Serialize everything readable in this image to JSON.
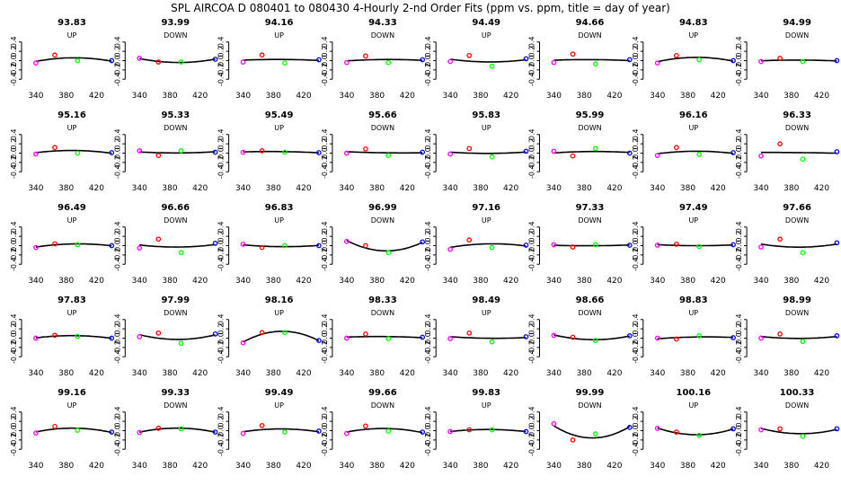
{
  "title": "SPL   AIRCOA D   080401 to 080430   4-Hourly 2-nd Order Fits (ppm vs. ppm, title = day of year)",
  "colors": {
    "p1": "#ff00ff",
    "p2": "#ff0000",
    "p3": "#00ff00",
    "p4": "#0000ff",
    "fit": "#000000"
  },
  "chart_data": {
    "type": "scatter",
    "layout": "5 rows x 8 columns small multiples",
    "title": "SPL   AIRCOA D   080401 to 080430   4-Hourly 2-nd Order Fits (ppm vs. ppm, title = day of year)",
    "xlim": [
      330,
      445
    ],
    "ylim": [
      -0.55,
      0.55
    ],
    "xticks": [
      340,
      380,
      420
    ],
    "xtick_labels": [
      "340",
      "380",
      "420"
    ],
    "yticks": [
      -0.4,
      -0.2,
      0.0,
      0.2,
      0.4
    ],
    "ytick_labels": [
      "-0.4",
      "-0.2",
      "0.0",
      "0.2",
      "0.4"
    ],
    "point_x": [
      340,
      365,
      395,
      440
    ],
    "panels": [
      {
        "title": "93.83",
        "dir": "UP",
        "y": [
          -0.05,
          0.12,
          0.0,
          0.0
        ]
      },
      {
        "title": "93.99",
        "dir": "DOWN",
        "y": [
          0.05,
          -0.03,
          -0.03,
          0.03
        ]
      },
      {
        "title": "94.16",
        "dir": "UP",
        "y": [
          -0.03,
          0.12,
          -0.05,
          0.02
        ]
      },
      {
        "title": "94.33",
        "dir": "DOWN",
        "y": [
          -0.04,
          0.1,
          -0.04,
          0.02
        ]
      },
      {
        "title": "94.49",
        "dir": "UP",
        "y": [
          -0.02,
          0.11,
          -0.12,
          0.04
        ]
      },
      {
        "title": "94.66",
        "dir": "DOWN",
        "y": [
          -0.04,
          0.14,
          -0.07,
          0.02
        ]
      },
      {
        "title": "94.83",
        "dir": "UP",
        "y": [
          -0.05,
          0.11,
          0.02,
          0.0
        ]
      },
      {
        "title": "94.99",
        "dir": "DOWN",
        "y": [
          -0.02,
          0.05,
          -0.02,
          0.0
        ]
      },
      {
        "title": "95.16",
        "dir": "UP",
        "y": [
          -0.02,
          0.12,
          0.0,
          0.01
        ]
      },
      {
        "title": "95.33",
        "dir": "DOWN",
        "y": [
          0.05,
          -0.05,
          0.05,
          0.02
        ]
      },
      {
        "title": "95.49",
        "dir": "UP",
        "y": [
          0.02,
          0.05,
          0.02,
          0.01
        ]
      },
      {
        "title": "95.66",
        "dir": "DOWN",
        "y": [
          0.0,
          0.09,
          -0.05,
          0.02
        ]
      },
      {
        "title": "95.83",
        "dir": "UP",
        "y": [
          -0.02,
          0.1,
          -0.08,
          0.04
        ]
      },
      {
        "title": "95.99",
        "dir": "DOWN",
        "y": [
          0.04,
          -0.06,
          0.1,
          0.0
        ]
      },
      {
        "title": "96.16",
        "dir": "UP",
        "y": [
          -0.05,
          0.12,
          -0.03,
          0.01
        ]
      },
      {
        "title": "96.33",
        "dir": "DOWN",
        "y": [
          -0.06,
          0.2,
          -0.13,
          0.03
        ]
      },
      {
        "title": "96.49",
        "dir": "UP",
        "y": [
          -0.04,
          0.04,
          0.02,
          0.0
        ]
      },
      {
        "title": "96.66",
        "dir": "DOWN",
        "y": [
          -0.05,
          0.14,
          -0.15,
          0.05
        ]
      },
      {
        "title": "96.83",
        "dir": "UP",
        "y": [
          0.03,
          -0.04,
          0.0,
          0.0
        ]
      },
      {
        "title": "96.99",
        "dir": "DOWN",
        "y": [
          0.09,
          0.0,
          -0.15,
          0.08
        ]
      },
      {
        "title": "97.16",
        "dir": "UP",
        "y": [
          -0.08,
          0.12,
          -0.04,
          0.01
        ]
      },
      {
        "title": "97.33",
        "dir": "DOWN",
        "y": [
          0.02,
          -0.03,
          0.02,
          0.01
        ]
      },
      {
        "title": "97.49",
        "dir": "UP",
        "y": [
          0.01,
          0.03,
          -0.02,
          0.02
        ]
      },
      {
        "title": "97.66",
        "dir": "DOWN",
        "y": [
          -0.03,
          0.14,
          -0.15,
          0.06
        ]
      },
      {
        "title": "97.83",
        "dir": "UP",
        "y": [
          0.0,
          0.06,
          0.04,
          0.0
        ]
      },
      {
        "title": "97.99",
        "dir": "DOWN",
        "y": [
          0.03,
          0.11,
          -0.11,
          0.09
        ]
      },
      {
        "title": "98.16",
        "dir": "UP",
        "y": [
          -0.1,
          0.12,
          0.12,
          -0.05
        ]
      },
      {
        "title": "98.33",
        "dir": "DOWN",
        "y": [
          0.0,
          0.09,
          -0.01,
          0.02
        ]
      },
      {
        "title": "98.49",
        "dir": "UP",
        "y": [
          -0.01,
          0.11,
          -0.08,
          0.03
        ]
      },
      {
        "title": "98.66",
        "dir": "DOWN",
        "y": [
          0.06,
          0.02,
          -0.05,
          0.05
        ]
      },
      {
        "title": "98.83",
        "dir": "UP",
        "y": [
          0.0,
          -0.02,
          0.05,
          0.01
        ]
      },
      {
        "title": "98.99",
        "dir": "DOWN",
        "y": [
          0.0,
          0.09,
          -0.07,
          0.05
        ]
      },
      {
        "title": "99.16",
        "dir": "UP",
        "y": [
          -0.05,
          0.09,
          0.01,
          -0.03
        ]
      },
      {
        "title": "99.33",
        "dir": "DOWN",
        "y": [
          -0.04,
          0.05,
          0.04,
          -0.03
        ]
      },
      {
        "title": "99.49",
        "dir": "UP",
        "y": [
          -0.06,
          0.11,
          -0.03,
          -0.01
        ]
      },
      {
        "title": "99.66",
        "dir": "DOWN",
        "y": [
          -0.06,
          0.1,
          -0.01,
          -0.03
        ]
      },
      {
        "title": "99.83",
        "dir": "UP",
        "y": [
          -0.02,
          0.02,
          0.02,
          -0.02
        ]
      },
      {
        "title": "99.99",
        "dir": "DOWN",
        "y": [
          0.15,
          -0.2,
          -0.07,
          0.07
        ]
      },
      {
        "title": "100.16",
        "dir": "UP",
        "y": [
          0.05,
          -0.03,
          -0.1,
          0.04
        ]
      },
      {
        "title": "100.33",
        "dir": "DOWN",
        "y": [
          0.02,
          0.04,
          -0.12,
          0.04
        ]
      }
    ]
  }
}
